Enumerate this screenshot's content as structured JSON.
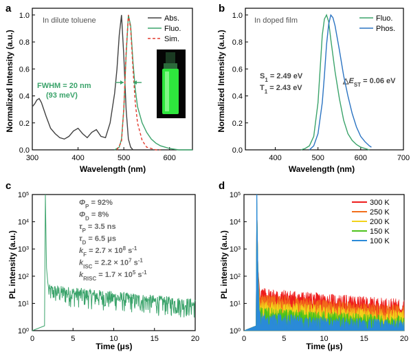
{
  "colors": {
    "abs": "#404040",
    "fluo": "#3aa36a",
    "sim": "#e23b2e",
    "phos": "#2a73c2",
    "k300": "#ee1c1c",
    "k250": "#f26d1a",
    "k200": "#f2d21a",
    "k150": "#4cc21a",
    "k100": "#2a8ad8",
    "fwhm": "#3aa36a",
    "vial_glow": "#32ff44"
  },
  "chart_data": [
    {
      "panel": "a",
      "type": "line",
      "annotation": "In dilute toluene",
      "xlabel": "Wavelength (nm)",
      "ylabel": "Normalized Intensity (a.u.)",
      "xlim": [
        300,
        650
      ],
      "ylim": [
        0,
        1.05
      ],
      "xticks": [
        "300",
        "400",
        "500",
        "600"
      ],
      "yticks": [
        "0.0",
        "0.2",
        "0.4",
        "0.6",
        "0.8",
        "1.0"
      ],
      "legend": [
        "Abs.",
        "Fluo.",
        "Sim."
      ],
      "legend_position": "top-right",
      "fwhm_label_1": "FWHM = 20 nm",
      "fwhm_label_2": "(93 meV)",
      "series": [
        {
          "name": "Abs.",
          "style": "solid",
          "x": [
            300,
            305,
            310,
            315,
            320,
            330,
            340,
            350,
            360,
            370,
            380,
            390,
            400,
            410,
            420,
            430,
            440,
            450,
            460,
            470,
            480,
            485,
            490,
            495,
            500,
            505,
            510,
            515,
            520
          ],
          "y": [
            0.32,
            0.34,
            0.37,
            0.38,
            0.35,
            0.25,
            0.16,
            0.12,
            0.09,
            0.08,
            0.1,
            0.14,
            0.16,
            0.12,
            0.09,
            0.13,
            0.15,
            0.1,
            0.09,
            0.2,
            0.42,
            0.6,
            0.85,
            1.0,
            0.7,
            0.3,
            0.08,
            0.02,
            0.0
          ]
        },
        {
          "name": "Fluo.",
          "style": "solid",
          "x": [
            480,
            490,
            495,
            500,
            505,
            510,
            515,
            520,
            525,
            530,
            540,
            550,
            560,
            570,
            580,
            590,
            600,
            620,
            650
          ],
          "y": [
            0.0,
            0.02,
            0.08,
            0.3,
            0.7,
            1.0,
            0.92,
            0.65,
            0.45,
            0.32,
            0.2,
            0.13,
            0.08,
            0.05,
            0.03,
            0.02,
            0.01,
            0.0,
            0.0
          ]
        },
        {
          "name": "Sim.",
          "style": "dashed",
          "x": [
            485,
            495,
            500,
            505,
            510,
            515,
            520,
            525,
            530,
            540,
            550,
            560,
            570,
            580
          ],
          "y": [
            0.0,
            0.06,
            0.3,
            0.72,
            1.0,
            0.9,
            0.6,
            0.35,
            0.2,
            0.07,
            0.02,
            0.01,
            0.0,
            0.0
          ]
        }
      ]
    },
    {
      "panel": "b",
      "type": "line",
      "annotation": "In doped film",
      "xlabel": "Wavelength (nm)",
      "ylabel": "Normalized Intensity (a.u.)",
      "xlim": [
        330,
        700
      ],
      "ylim": [
        0,
        1.05
      ],
      "xticks": [
        "400",
        "500",
        "600",
        "700"
      ],
      "yticks": [
        "0.0",
        "0.2",
        "0.4",
        "0.6",
        "0.8",
        "1.0"
      ],
      "legend": [
        "Fluo.",
        "Phos."
      ],
      "legend_position": "top-right",
      "s1_label": "S",
      "s1_sub": "1",
      "s1_value": " = 2.49 eV",
      "t1_label": "T",
      "t1_sub": "1",
      "t1_value": " = 2.43 eV",
      "dest_prefix": "△",
      "dest_e": "E",
      "dest_sub": "ST",
      "dest_value": " = 0.06 eV",
      "series": [
        {
          "name": "Fluo.",
          "x": [
            460,
            470,
            480,
            490,
            500,
            505,
            510,
            515,
            520,
            525,
            530,
            540,
            550,
            560,
            570,
            580,
            590,
            600,
            610,
            620
          ],
          "y": [
            0.0,
            0.01,
            0.03,
            0.1,
            0.35,
            0.6,
            0.85,
            0.97,
            1.0,
            0.95,
            0.82,
            0.58,
            0.38,
            0.22,
            0.12,
            0.07,
            0.04,
            0.02,
            0.01,
            0.0
          ]
        },
        {
          "name": "Phos.",
          "x": [
            480,
            490,
            500,
            510,
            515,
            520,
            525,
            530,
            535,
            540,
            550,
            560,
            570,
            580,
            590,
            600,
            610,
            620,
            625
          ],
          "y": [
            0.0,
            0.03,
            0.12,
            0.35,
            0.55,
            0.78,
            0.93,
            1.0,
            0.98,
            0.92,
            0.74,
            0.55,
            0.4,
            0.27,
            0.17,
            0.1,
            0.06,
            0.03,
            0.02
          ]
        }
      ]
    },
    {
      "panel": "c",
      "type": "line",
      "xlabel": "Time (μs)",
      "ylabel": "PL intensity (a.u.)",
      "xlim": [
        0,
        20
      ],
      "ylim_log10": [
        0,
        5
      ],
      "xticks": [
        "0",
        "5",
        "10",
        "15",
        "20"
      ],
      "yticks_exp": [
        "0",
        "1",
        "2",
        "3",
        "4",
        "5"
      ],
      "params": [
        {
          "sym": "Φ",
          "sub": "P",
          "val": " = 92%"
        },
        {
          "sym": "Φ",
          "sub": "D",
          "val": " = 8%"
        },
        {
          "sym": "τ",
          "sub": "P",
          "val": " = 3.5 ns"
        },
        {
          "sym": "τ",
          "sub": "D",
          "val": " = 6.5 μs"
        },
        {
          "sym": "k",
          "sub": "F",
          "val": " = 2.7 × 10",
          "sup": "8",
          "unit": " s",
          "unit_sup": "-1"
        },
        {
          "sym": "k",
          "sub": "ISC",
          "val": " = 2.2 × 10",
          "sup": "7",
          "unit": " s",
          "unit_sup": "-1"
        },
        {
          "sym": "k",
          "sub": "RISC",
          "val": " = 1.7 × 10",
          "sup": "5",
          "unit": " s",
          "unit_sup": "-1"
        }
      ],
      "series": [
        {
          "name": "decay",
          "peak_x": 1.6,
          "peak_y": 100000,
          "tail_start": 30,
          "tail_end": 5
        }
      ]
    },
    {
      "panel": "d",
      "type": "line",
      "xlabel": "Time (μs)",
      "ylabel": "PL intensity (a.u.)",
      "xlim": [
        0,
        20
      ],
      "ylim_log10": [
        0,
        5
      ],
      "xticks": [
        "0",
        "5",
        "10",
        "15",
        "20"
      ],
      "yticks_exp": [
        "0",
        "1",
        "2",
        "3",
        "4",
        "5"
      ],
      "legend": [
        "300 K",
        "250 K",
        "200 K",
        "150 K",
        "100 K"
      ],
      "legend_position": "top-right",
      "series": [
        {
          "name": "300 K",
          "tail_start": 25,
          "tail_end": 8
        },
        {
          "name": "250 K",
          "tail_start": 15,
          "tail_end": 5
        },
        {
          "name": "200 K",
          "tail_start": 9,
          "tail_end": 3.5
        },
        {
          "name": "150 K",
          "tail_start": 5,
          "tail_end": 2.5
        },
        {
          "name": "100 K",
          "tail_start": 3,
          "tail_end": 2
        }
      ]
    }
  ],
  "panel_letters": [
    "a",
    "b",
    "c",
    "d"
  ],
  "tick_base": "10"
}
